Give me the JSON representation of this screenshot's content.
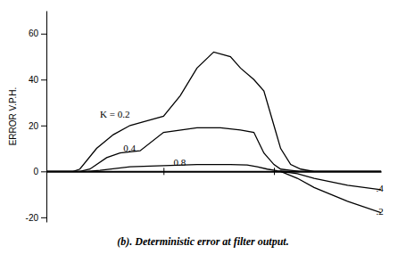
{
  "chart_data": {
    "type": "line",
    "title": "(b).  Deterministic error at filter output.",
    "ylabel": "ERROR V.P.H.",
    "xlim": [
      0,
      10
    ],
    "ylim": [
      -22,
      70
    ],
    "yticks": [
      -20,
      0,
      20,
      40,
      60
    ],
    "xticks": [
      3.5,
      6.8
    ],
    "tick_labels": "y",
    "series": [
      {
        "color": "#000000",
        "x": [
          0,
          0.8,
          1.0,
          1.5,
          2.0,
          2.5,
          3.0,
          3.5,
          4.0,
          4.5,
          5.0,
          5.5,
          5.8,
          6.2,
          6.5,
          6.8,
          7.0,
          7.3,
          7.6,
          8.0,
          10.0
        ],
        "values": [
          0,
          0,
          1,
          10,
          16,
          20,
          22,
          24,
          33,
          45,
          52,
          50,
          45,
          40,
          35,
          20,
          10,
          3,
          1,
          0,
          0
        ]
      },
      {
        "color": "#000000",
        "x": [
          0,
          1.0,
          1.3,
          1.8,
          2.2,
          2.8,
          3.5,
          4.5,
          5.2,
          5.8,
          6.2,
          6.5,
          6.8,
          7.0,
          7.3,
          7.6,
          8.0,
          10.0
        ],
        "values": [
          0,
          0,
          1,
          6,
          8,
          9,
          17,
          19,
          19,
          18,
          17,
          8,
          3,
          1,
          0.5,
          0,
          0,
          0
        ]
      },
      {
        "color": "#000000",
        "x": [
          0,
          1.2,
          1.6,
          2.5,
          3.5,
          4.5,
          5.5,
          6.0,
          6.3,
          6.6,
          6.9,
          7.2,
          7.5,
          8.0,
          10.0
        ],
        "values": [
          0,
          0,
          0.5,
          2,
          2.5,
          3,
          3,
          2.8,
          2,
          1,
          0.3,
          0,
          0,
          0,
          0
        ]
      },
      {
        "color": "#000000",
        "x": [
          7.0,
          7.5,
          8.0,
          9.0,
          10.0
        ],
        "values": [
          0,
          -1,
          -3,
          -6,
          -8
        ]
      },
      {
        "color": "#000000",
        "x": [
          7.0,
          7.5,
          8.0,
          9.0,
          10.0
        ],
        "values": [
          0,
          -3,
          -7,
          -13,
          -18
        ]
      }
    ],
    "annotations": [
      {
        "text": "K = 0.2",
        "x": 1.6,
        "y": 25
      },
      {
        "text": "0.4",
        "x": 2.3,
        "y": 10
      },
      {
        "text": "0.8",
        "x": 3.8,
        "y": 4
      },
      {
        "text": ".4",
        "x": 9.85,
        "y": -7.5
      },
      {
        "text": ".2",
        "x": 9.85,
        "y": -17.5
      }
    ]
  }
}
